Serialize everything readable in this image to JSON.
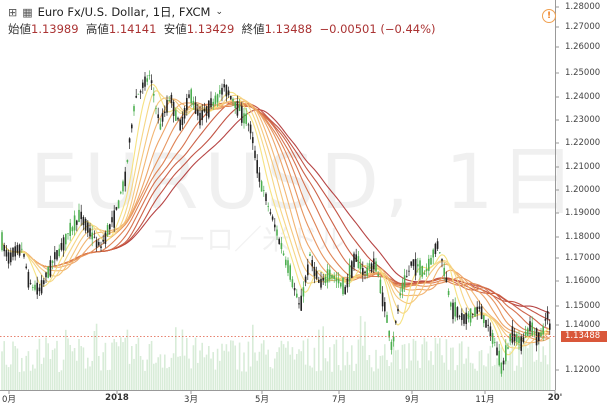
{
  "header": {
    "symbol_title": "Euro Fx/U.S. Dollar, 1日, FXCM",
    "open_label": "始値",
    "open_value": "1.13989",
    "high_label": "高値",
    "high_value": "1.14141",
    "low_label": "安値",
    "low_value": "1.13429",
    "close_label": "終値",
    "close_value": "1.13488",
    "change": "−0.00501 (−0.44%)"
  },
  "watermark": {
    "main": "EURUSD, 1日",
    "sub": "ユーロ／米ドル"
  },
  "current_price": "1.13488",
  "y_axis": [
    "1.28000",
    "1.27000",
    "1.26000",
    "1.25000",
    "1.24000",
    "1.23000",
    "1.22000",
    "1.21000",
    "1.20000",
    "1.19000",
    "1.18000",
    "1.17000",
    "1.16000",
    "1.15000",
    "1.14000",
    "1.12000"
  ],
  "x_axis": [
    {
      "label": "0月",
      "bold": false
    },
    {
      "label": "2018",
      "bold": true
    },
    {
      "label": "3月",
      "bold": false
    },
    {
      "label": "5月",
      "bold": false
    },
    {
      "label": "7月",
      "bold": false
    },
    {
      "label": "9月",
      "bold": false
    },
    {
      "label": "11月",
      "bold": false
    },
    {
      "label": "20'",
      "bold": true
    }
  ],
  "colors": {
    "up": "#4caf50",
    "down": "#222222",
    "ribbon_fast": "#f5e07a",
    "ribbon_slow": "#b23a3a",
    "price_line": "#e05a40",
    "volume": "#b8dcb8"
  },
  "chart_data": {
    "type": "candlestick",
    "ylim": [
      1.115,
      1.281
    ],
    "anchors": [
      [
        0,
        1.18
      ],
      [
        8,
        1.172
      ],
      [
        22,
        1.176
      ],
      [
        30,
        1.16
      ],
      [
        40,
        1.158
      ],
      [
        55,
        1.172
      ],
      [
        80,
        1.19
      ],
      [
        100,
        1.176
      ],
      [
        115,
        1.19
      ],
      [
        125,
        1.205
      ],
      [
        135,
        1.24
      ],
      [
        150,
        1.25
      ],
      [
        160,
        1.228
      ],
      [
        170,
        1.241
      ],
      [
        180,
        1.228
      ],
      [
        190,
        1.242
      ],
      [
        200,
        1.232
      ],
      [
        212,
        1.238
      ],
      [
        225,
        1.245
      ],
      [
        240,
        1.235
      ],
      [
        250,
        1.228
      ],
      [
        260,
        1.205
      ],
      [
        275,
        1.185
      ],
      [
        290,
        1.165
      ],
      [
        300,
        1.15
      ],
      [
        310,
        1.172
      ],
      [
        320,
        1.16
      ],
      [
        330,
        1.165
      ],
      [
        345,
        1.158
      ],
      [
        355,
        1.172
      ],
      [
        365,
        1.165
      ],
      [
        375,
        1.17
      ],
      [
        385,
        1.15
      ],
      [
        392,
        1.133
      ],
      [
        400,
        1.155
      ],
      [
        412,
        1.17
      ],
      [
        425,
        1.165
      ],
      [
        438,
        1.178
      ],
      [
        445,
        1.165
      ],
      [
        452,
        1.15
      ],
      [
        465,
        1.145
      ],
      [
        480,
        1.15
      ],
      [
        495,
        1.135
      ],
      [
        502,
        1.124
      ],
      [
        512,
        1.14
      ],
      [
        520,
        1.135
      ],
      [
        530,
        1.142
      ],
      [
        540,
        1.137
      ],
      [
        548,
        1.148
      ],
      [
        552,
        1.135
      ]
    ]
  }
}
